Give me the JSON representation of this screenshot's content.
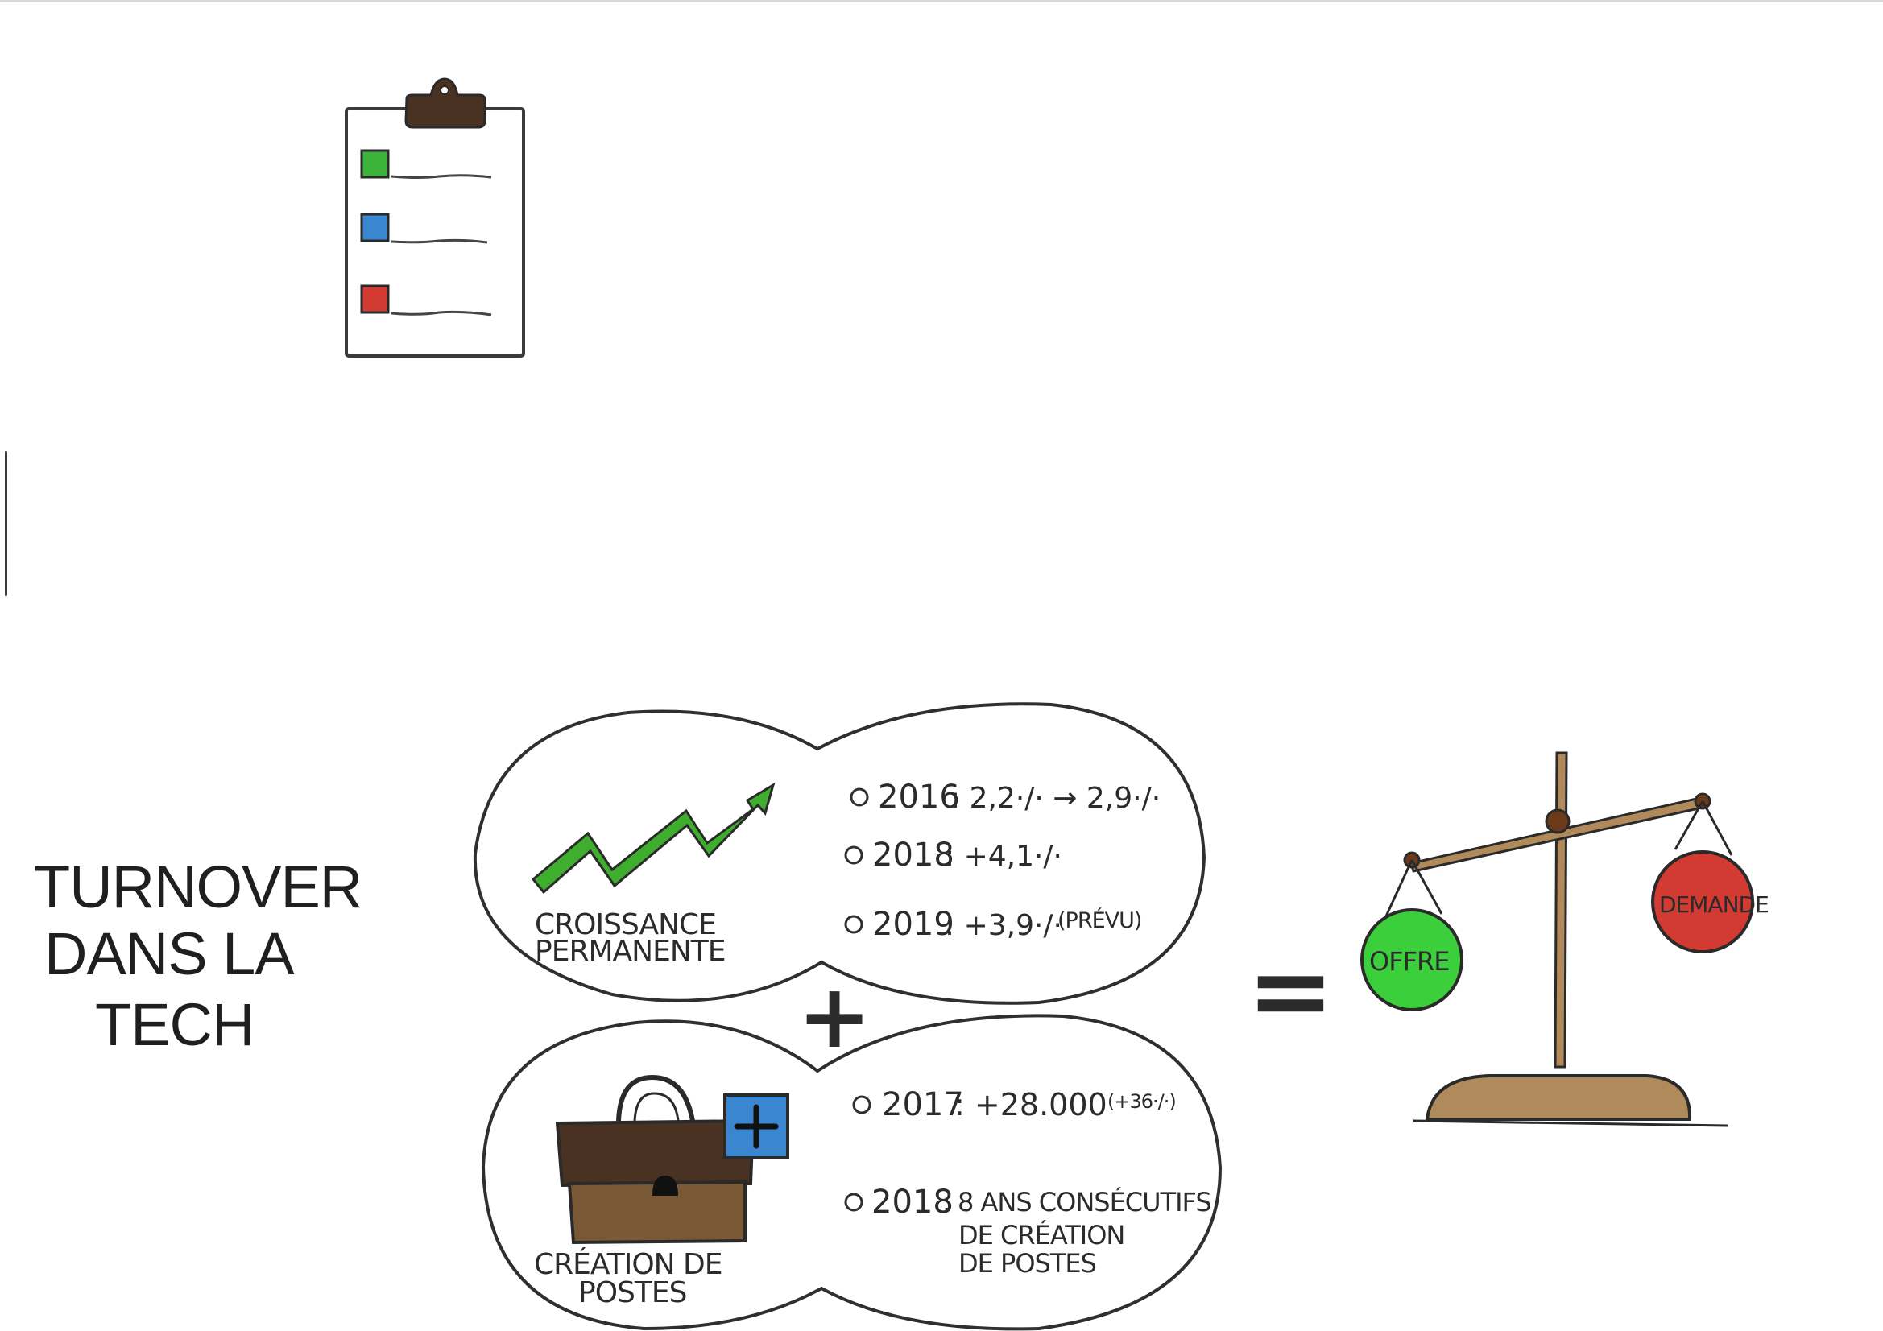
{
  "title": {
    "line1": "TURNOVER",
    "line2": "DANS LA",
    "line3": "TECH"
  },
  "clipboard": {
    "checkbox_colors": [
      "#3cb43c",
      "#3b86d0",
      "#d23a32"
    ],
    "clip_color": "#4a3222"
  },
  "growth_bubble": {
    "label_line1": "CROISSANCE",
    "label_line2": "PERMANENTE",
    "arrow_color": "#3fae2f",
    "items": [
      {
        "year": "2016",
        "value": ": 2,2·/· → 2,9·/·"
      },
      {
        "year": "2018",
        "value": ": +4,1·/·"
      },
      {
        "year": "2019",
        "value": ": +3,9·/·",
        "note": "(PRÉVU)"
      }
    ]
  },
  "plus_sign": "+",
  "jobs_bubble": {
    "label_line1": "CRÉATION DE",
    "label_line2": "POSTES",
    "briefcase_top_color": "#4a3222",
    "briefcase_bottom_color": "#7a5a36",
    "badge_color": "#3b86d0",
    "items": [
      {
        "year": "2017",
        "value": ": +28.000",
        "note": "(+36·/·)"
      },
      {
        "year": "2018",
        "value": ": 8 ANS CONSÉCUTIFS",
        "line2": "DE CRÉATION",
        "line3": "DE POSTES"
      }
    ]
  },
  "equals_sign": "=",
  "scale": {
    "left_pan_label": "OFFRE",
    "right_pan_label": "DEMANDE",
    "left_pan_color": "#3ccf3c",
    "right_pan_color": "#d23a32",
    "wood_color": "#b08a5a"
  }
}
